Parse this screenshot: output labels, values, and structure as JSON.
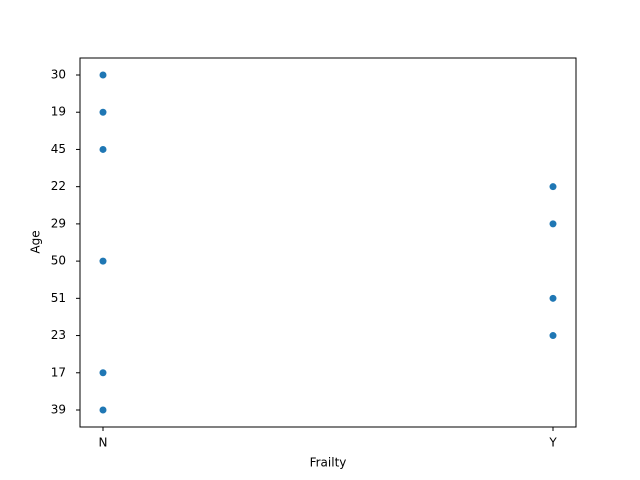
{
  "chart_data": {
    "type": "scatter",
    "xlabel": "Frailty",
    "ylabel": "Age",
    "x_categories": [
      "N",
      "Y"
    ],
    "y_categories": [
      "39",
      "17",
      "23",
      "51",
      "50",
      "29",
      "22",
      "45",
      "19",
      "30"
    ],
    "x": [
      "N",
      "N",
      "Y",
      "Y",
      "N",
      "Y",
      "Y",
      "N",
      "N",
      "N"
    ],
    "y": [
      "39",
      "17",
      "23",
      "51",
      "50",
      "29",
      "22",
      "45",
      "19",
      "30"
    ],
    "color": "#1f77b4"
  }
}
